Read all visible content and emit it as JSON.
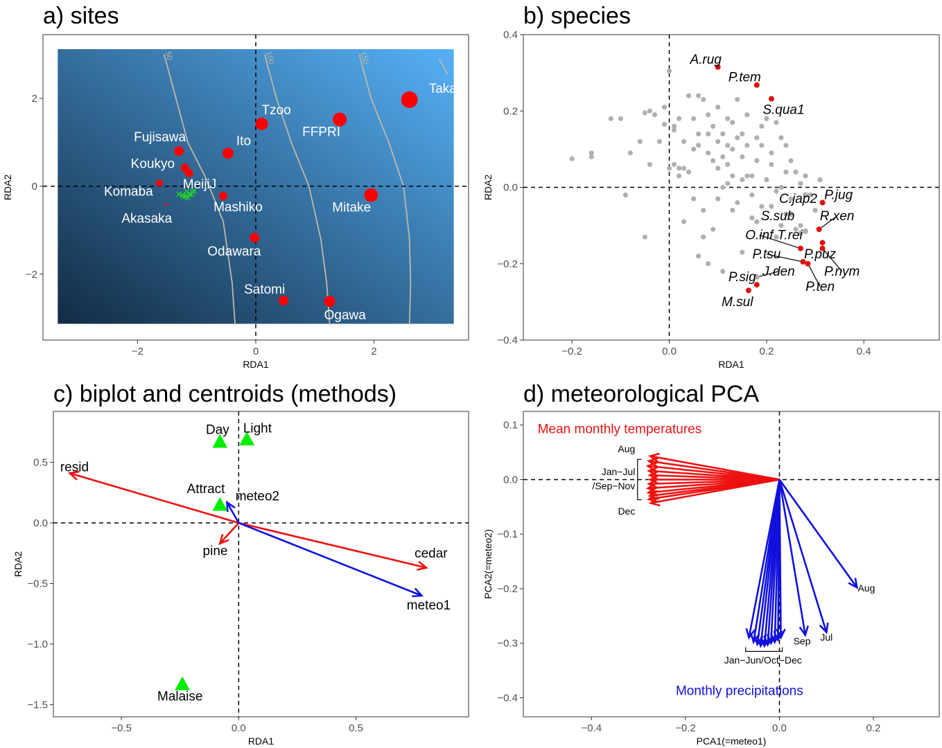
{
  "colors": {
    "site_point": "#ff0000",
    "species_grey": "#b0b0b0",
    "species_red": "#e01010",
    "arrow_red": "#ee1111",
    "arrow_blue": "#1111dd",
    "centroid_green": "#00ee00",
    "contour": "#c0b8a8",
    "bg_dark": "#132b43",
    "bg_light": "#56b1f7",
    "panel_border": "#333333"
  },
  "chart_data": [
    {
      "id": "sites",
      "type": "scatter",
      "title": "a) sites",
      "xlabel": "RDA1",
      "ylabel": "RDA2",
      "xlim": [
        -3.6,
        3.6
      ],
      "ylim": [
        -3.5,
        3.45
      ],
      "xticks": [
        -2,
        0,
        2
      ],
      "yticks": [
        -2,
        0,
        2
      ],
      "background_gradient": true,
      "contours": [
        {
          "label": "50",
          "points": [
            [
              -1.55,
              3.0
            ],
            [
              -1.35,
              2.0
            ],
            [
              -1.15,
              1.0
            ],
            [
              -0.85,
              0.2
            ],
            [
              -0.55,
              -0.8
            ],
            [
              -0.4,
              -2.2
            ],
            [
              -0.35,
              -3.15
            ]
          ]
        },
        {
          "label": "100",
          "points": [
            [
              0.15,
              3.0
            ],
            [
              0.35,
              2.0
            ],
            [
              0.6,
              1.0
            ],
            [
              0.9,
              0.0
            ],
            [
              1.1,
              -1.2
            ],
            [
              1.2,
              -2.2
            ],
            [
              1.25,
              -3.15
            ]
          ]
        },
        {
          "label": "150",
          "points": [
            [
              1.75,
              3.0
            ],
            [
              1.95,
              2.0
            ],
            [
              2.25,
              1.0
            ],
            [
              2.5,
              0.0
            ],
            [
              2.6,
              -1.2
            ],
            [
              2.62,
              -2.2
            ],
            [
              2.6,
              -3.15
            ]
          ]
        },
        {
          "label": "",
          "points": [
            [
              3.1,
              2.9
            ],
            [
              3.25,
              2.55
            ]
          ]
        }
      ],
      "sites": [
        {
          "name": "Takao",
          "x": 2.6,
          "y": 1.97,
          "size": 12
        },
        {
          "name": "Tzoo",
          "x": 0.1,
          "y": 1.42,
          "size": 9
        },
        {
          "name": "FFPRI",
          "x": 1.42,
          "y": 1.52,
          "size": 10
        },
        {
          "name": "Ito",
          "x": -0.47,
          "y": 0.75,
          "size": 8
        },
        {
          "name": "Fujisawa",
          "x": -1.3,
          "y": 0.8,
          "size": 7
        },
        {
          "name": "Koukyo",
          "x": -1.2,
          "y": 0.42,
          "size": 6
        },
        {
          "name": "",
          "x": -1.13,
          "y": 0.3,
          "size": 6
        },
        {
          "name": "Komaba",
          "x": -1.63,
          "y": 0.07,
          "size": 5
        },
        {
          "name": "Akasaka",
          "x": -1.52,
          "y": -0.42,
          "size": 2
        },
        {
          "name": "Mashiko",
          "x": -0.55,
          "y": -0.22,
          "size": 6
        },
        {
          "name": "Mitake",
          "x": 1.95,
          "y": -0.2,
          "size": 10
        },
        {
          "name": "Odawara",
          "x": -0.02,
          "y": -1.17,
          "size": 7
        },
        {
          "name": "Satomi",
          "x": 0.47,
          "y": -2.6,
          "size": 7
        },
        {
          "name": "Ogawa",
          "x": 1.25,
          "y": -2.62,
          "size": 8
        }
      ],
      "meiji": {
        "name": "MeijiJ",
        "marker": "x",
        "x": [
          -1.3,
          -1.24,
          -1.18,
          -1.12,
          -1.07,
          -1.22,
          -1.15,
          -1.1,
          -1.05,
          -1.17
        ],
        "y": [
          -0.18,
          -0.2,
          -0.22,
          -0.19,
          -0.14,
          -0.24,
          -0.26,
          -0.18,
          -0.1,
          -0.12
        ]
      }
    },
    {
      "id": "species",
      "type": "scatter",
      "title": "b) species",
      "xlabel": "RDA1",
      "ylabel": "RDA2",
      "xlim": [
        -0.3,
        0.555
      ],
      "ylim": [
        -0.4,
        0.4
      ],
      "xticks": [
        -0.2,
        0.0,
        0.2,
        0.4
      ],
      "yticks": [
        -0.4,
        -0.2,
        0.0,
        0.2,
        0.4
      ],
      "grey_points": {
        "x": [
          -0.2,
          -0.16,
          -0.16,
          -0.12,
          -0.1,
          -0.09,
          -0.08,
          -0.06,
          -0.05,
          -0.04,
          -0.04,
          -0.03,
          -0.02,
          -0.01,
          -0.01,
          0.0,
          0.0,
          0.01,
          0.01,
          0.01,
          0.02,
          0.02,
          0.03,
          0.03,
          0.04,
          0.04,
          0.05,
          0.05,
          0.06,
          0.06,
          0.06,
          0.07,
          0.07,
          0.08,
          0.08,
          0.08,
          0.09,
          0.09,
          0.1,
          0.1,
          0.1,
          0.11,
          0.11,
          0.11,
          0.12,
          0.12,
          0.12,
          0.13,
          0.13,
          0.13,
          0.14,
          0.14,
          0.15,
          0.15,
          0.15,
          0.16,
          0.16,
          0.17,
          0.17,
          0.18,
          0.18,
          0.19,
          0.19,
          0.2,
          0.2,
          0.21,
          0.21,
          0.22,
          0.22,
          0.23,
          0.23,
          0.24,
          0.24,
          0.25,
          0.25,
          0.26,
          0.27,
          0.27,
          0.28,
          0.29,
          0.3,
          0.31,
          0.17,
          0.19,
          0.21,
          0.24,
          0.26,
          0.22,
          0.03,
          0.07,
          0.1,
          0.12,
          0.14,
          0.16,
          0.09,
          0.05,
          0.02,
          -0.05,
          0.13,
          0.18,
          0.23,
          0.27,
          0.08,
          0.15,
          0.11,
          0.06
        ],
        "y": [
          0.075,
          0.09,
          0.08,
          0.18,
          0.18,
          -0.02,
          0.09,
          0.12,
          0.195,
          0.06,
          0.2,
          0.19,
          0.12,
          0.165,
          0.21,
          0.305,
          0.05,
          0.15,
          0.06,
          0.16,
          0.18,
          0.03,
          0.12,
          0.05,
          0.24,
          0.04,
          0.18,
          0.1,
          0.11,
          0.24,
          0.14,
          -0.06,
          0.23,
          0.09,
          0.19,
          0.14,
          0.07,
          0.16,
          0.05,
          0.21,
          0.12,
          0.14,
          0.08,
          0.0,
          0.18,
          0.11,
          0.06,
          0.17,
          0.1,
          0.03,
          0.23,
          0.13,
          0.14,
          0.08,
          0.02,
          0.11,
          0.19,
          0.03,
          -0.02,
          0.13,
          0.07,
          0.11,
          0.16,
          0.02,
          0.18,
          0.09,
          0.06,
          0.17,
          -0.01,
          0.13,
          0.0,
          0.11,
          0.04,
          0.07,
          -0.03,
          0.04,
          0.01,
          -0.1,
          0.03,
          -0.02,
          -0.06,
          0.02,
          -0.08,
          -0.05,
          -0.05,
          -0.07,
          -0.11,
          -0.13,
          -0.09,
          -0.13,
          -0.03,
          0.01,
          -0.04,
          0.03,
          -0.11,
          -0.03,
          0.05,
          -0.13,
          -0.06,
          -0.09,
          -0.1,
          -0.12,
          -0.2,
          -0.17,
          -0.22,
          -0.18
        ]
      },
      "labeled_species": [
        {
          "name": "A.rug",
          "x": 0.1,
          "y": 0.315,
          "lx": 0.075,
          "ly": 0.335,
          "red": true
        },
        {
          "name": "P.tem",
          "x": 0.18,
          "y": 0.268,
          "lx": 0.155,
          "ly": 0.288,
          "red": true
        },
        {
          "name": "S.qua1",
          "x": 0.21,
          "y": 0.232,
          "lx": 0.235,
          "ly": 0.203,
          "red": true
        },
        {
          "name": "C.jap2",
          "x": 0.28,
          "y": -0.02,
          "lx": 0.265,
          "ly": -0.03,
          "red": false
        },
        {
          "name": "P.jug",
          "x": 0.315,
          "y": -0.04,
          "lx": 0.348,
          "ly": -0.02,
          "red": true
        },
        {
          "name": "S.sub",
          "x": 0.25,
          "y": -0.07,
          "lx": 0.223,
          "ly": -0.075,
          "red": false
        },
        {
          "name": "R.xen",
          "x": 0.308,
          "y": -0.11,
          "lx": 0.345,
          "ly": -0.075,
          "red": true
        },
        {
          "name": "T.rei",
          "x": 0.28,
          "y": -0.115,
          "lx": 0.248,
          "ly": -0.125,
          "red": false
        },
        {
          "name": "O.inf",
          "x": 0.27,
          "y": -0.16,
          "lx": 0.185,
          "ly": -0.125,
          "red": true
        },
        {
          "name": "P.puz",
          "x": 0.315,
          "y": -0.145,
          "lx": 0.31,
          "ly": -0.175,
          "red": true
        },
        {
          "name": "P.tsu",
          "x": 0.275,
          "y": -0.195,
          "lx": 0.2,
          "ly": -0.175,
          "red": true
        },
        {
          "name": "P.nym",
          "x": 0.315,
          "y": -0.16,
          "lx": 0.355,
          "ly": -0.22,
          "red": true
        },
        {
          "name": "J.den",
          "x": 0.18,
          "y": -0.235,
          "lx": 0.225,
          "ly": -0.22,
          "red": false
        },
        {
          "name": "P.ten",
          "x": 0.285,
          "y": -0.2,
          "lx": 0.31,
          "ly": -0.26,
          "red": true
        },
        {
          "name": "P.sig",
          "x": 0.18,
          "y": -0.255,
          "lx": 0.15,
          "ly": -0.235,
          "red": true
        },
        {
          "name": "M.sul",
          "x": 0.163,
          "y": -0.27,
          "lx": 0.14,
          "ly": -0.3,
          "red": true
        }
      ]
    },
    {
      "id": "biplot",
      "type": "scatter",
      "title": "c) biplot and centroids (methods)",
      "xlabel": "RDA1",
      "ylabel": "RDA2",
      "xlim": [
        -0.79,
        0.98
      ],
      "ylim": [
        -1.6,
        0.92
      ],
      "xticks": [
        -0.5,
        0.0,
        0.5
      ],
      "yticks": [
        -1.5,
        -1.0,
        -0.5,
        0.0,
        0.5
      ],
      "arrows": [
        {
          "name": "resid",
          "x": -0.72,
          "y": 0.41,
          "color": "red",
          "lx": -0.7,
          "ly": 0.46
        },
        {
          "name": "cedar",
          "x": 0.8,
          "y": -0.37,
          "color": "red",
          "lx": 0.82,
          "ly": -0.25
        },
        {
          "name": "pine",
          "x": -0.08,
          "y": -0.17,
          "color": "red",
          "lx": -0.1,
          "ly": -0.23
        },
        {
          "name": "meteo1",
          "x": 0.78,
          "y": -0.6,
          "color": "blue",
          "lx": 0.81,
          "ly": -0.68
        },
        {
          "name": "meteo2",
          "x": -0.05,
          "y": 0.17,
          "color": "blue",
          "lx": 0.08,
          "ly": 0.22
        }
      ],
      "centroids": [
        {
          "name": "Day",
          "x": -0.08,
          "y": 0.67,
          "lx": -0.09,
          "ly": 0.77
        },
        {
          "name": "Light",
          "x": 0.035,
          "y": 0.69,
          "lx": 0.08,
          "ly": 0.78
        },
        {
          "name": "Attract",
          "x": -0.08,
          "y": 0.15,
          "lx": -0.14,
          "ly": 0.28
        },
        {
          "name": "Malaise",
          "x": -0.24,
          "y": -1.33,
          "lx": -0.25,
          "ly": -1.43
        }
      ]
    },
    {
      "id": "meteo_pca",
      "type": "scatter",
      "title": "d) meteorological PCA",
      "xlabel": "PCA1(=meteo1)",
      "ylabel": "PCA2(=meteo2)",
      "xlim": [
        -0.545,
        0.34
      ],
      "ylim": [
        -0.435,
        0.125
      ],
      "xticks": [
        -0.4,
        -0.2,
        0.0,
        0.2
      ],
      "yticks": [
        -0.4,
        -0.3,
        -0.2,
        -0.1,
        0.0,
        0.1
      ],
      "temperature_arrows": {
        "x": [
          -0.275,
          -0.278,
          -0.28,
          -0.278,
          -0.276,
          -0.275,
          -0.278,
          -0.28,
          -0.279,
          -0.276,
          -0.278,
          -0.274
        ],
        "y": [
          0.043,
          0.034,
          0.025,
          0.016,
          0.008,
          0.0,
          -0.008,
          -0.016,
          -0.024,
          -0.03,
          -0.036,
          -0.043
        ]
      },
      "precipitation_arrows": {
        "x": [
          -0.065,
          -0.055,
          -0.047,
          -0.04,
          -0.032,
          -0.025,
          -0.018,
          -0.01,
          -0.003,
          0.003,
          0.055,
          0.1,
          0.165
        ],
        "y": [
          -0.29,
          -0.298,
          -0.302,
          -0.305,
          -0.305,
          -0.303,
          -0.3,
          -0.298,
          -0.294,
          -0.29,
          -0.285,
          -0.28,
          -0.198
        ]
      },
      "labels": {
        "temp_group": "Mean monthly temperatures",
        "precip_group": "Monthly precipitations",
        "aug_top": "Aug",
        "jan_jul": "Jan−Jul",
        "sep_nov": "/Sep−Nov",
        "dec": "Dec",
        "precip_range": "Jan−Jun/Oct−Dec",
        "sep": "Sep",
        "jul": "Jul",
        "aug": "Aug"
      }
    }
  ]
}
